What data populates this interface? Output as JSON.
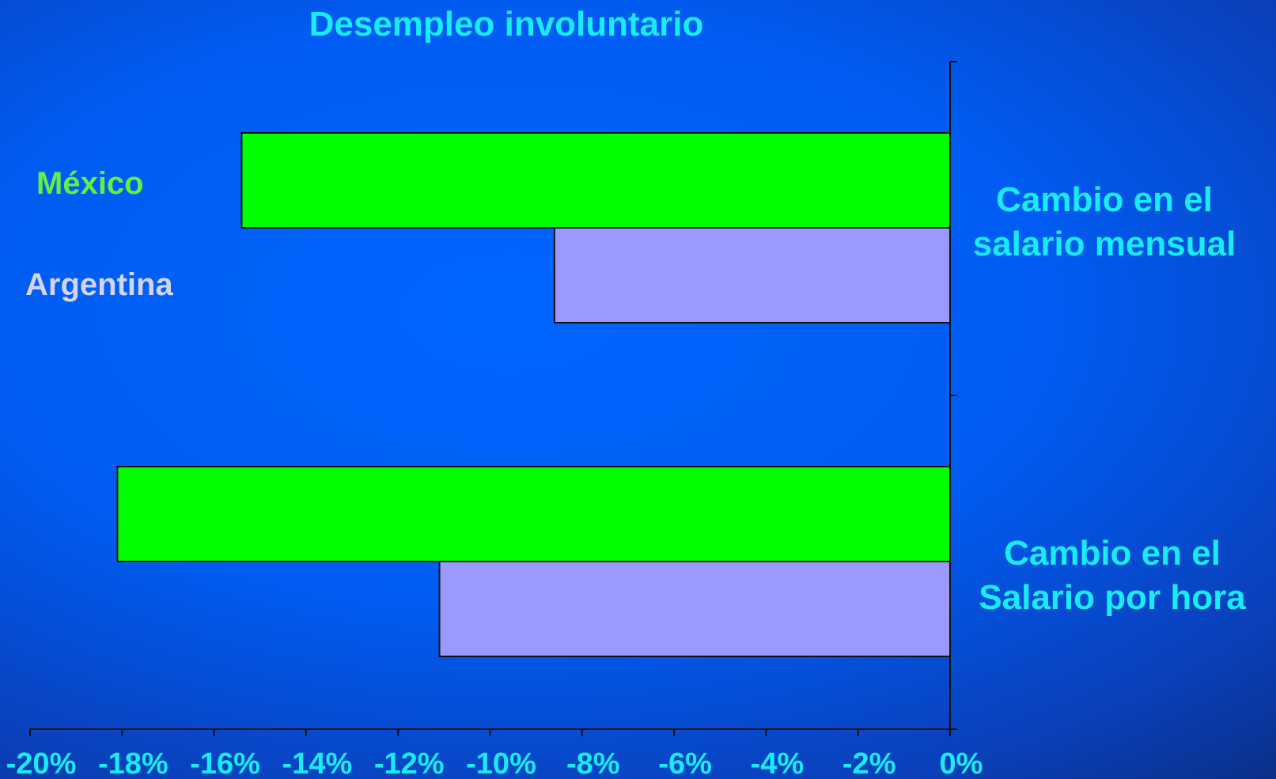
{
  "chart_data": {
    "type": "bar",
    "orientation": "horizontal",
    "title": "Desempleo involuntario",
    "categories": [
      [
        "Cambio en el",
        "salario mensual"
      ],
      [
        "Cambio en el",
        "Salario por hora"
      ]
    ],
    "series": [
      {
        "name": "México",
        "color": "#00ff00",
        "values": [
          -15.4,
          -18.1
        ]
      },
      {
        "name": "Argentina",
        "color": "#9999ff",
        "values": [
          -8.6,
          -11.1
        ]
      }
    ],
    "legend_text_colors": {
      "México": "#66ee44",
      "Argentina": "#d4d4ef"
    },
    "xlim": [
      -20,
      0
    ],
    "xticks": [
      -20,
      -18,
      -16,
      -14,
      -12,
      -10,
      -8,
      -6,
      -4,
      -2,
      0
    ],
    "tick_suffix": "%",
    "xlabel": "",
    "ylabel": "",
    "grid": false,
    "accent_color": "#18ecf6"
  }
}
